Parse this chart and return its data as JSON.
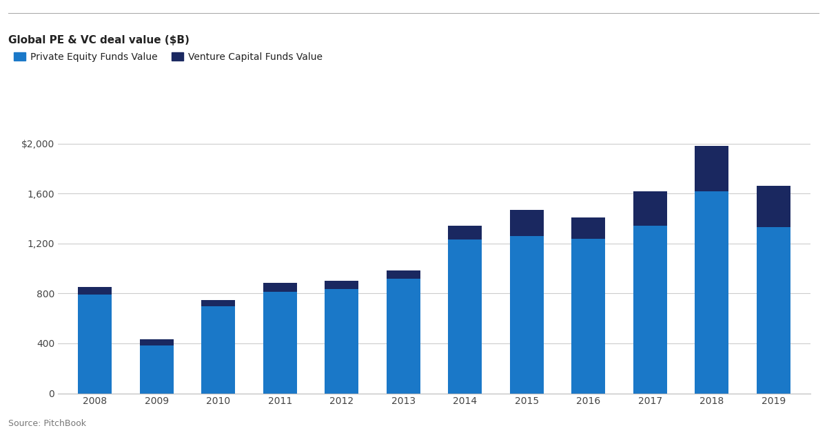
{
  "years": [
    "2008",
    "2009",
    "2010",
    "2011",
    "2012",
    "2013",
    "2014",
    "2015",
    "2016",
    "2017",
    "2018",
    "2019"
  ],
  "pe_values": [
    790,
    385,
    695,
    815,
    835,
    915,
    1230,
    1260,
    1240,
    1340,
    1620,
    1330
  ],
  "vc_values": [
    60,
    45,
    50,
    70,
    65,
    70,
    110,
    210,
    170,
    275,
    360,
    330
  ],
  "pe_color": "#1a78c8",
  "vc_color": "#1a2860",
  "title": "Global PE & VC deal value ($B)",
  "yticks": [
    0,
    400,
    800,
    1200,
    1600,
    2000
  ],
  "ytick_labels": [
    "0",
    "400",
    "800",
    "1,200",
    "1,600",
    "$2,000"
  ],
  "ylim": [
    0,
    2100
  ],
  "legend_pe": "Private Equity Funds Value",
  "legend_vc": "Venture Capital Funds Value",
  "source": "Source: PitchBook",
  "background_color": "#ffffff",
  "title_fontsize": 11,
  "label_fontsize": 10,
  "tick_fontsize": 10,
  "source_fontsize": 9
}
